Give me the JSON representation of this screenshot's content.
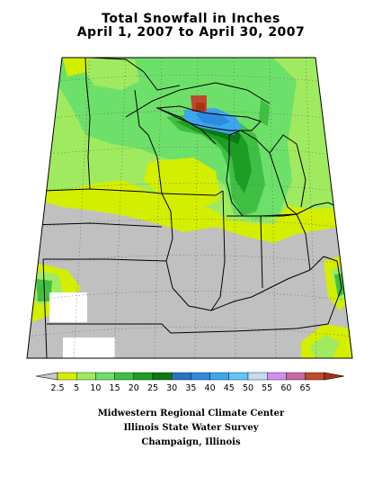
{
  "title": {
    "line1": "Total Snowfall in Inches",
    "line2": "April 1, 2007 to April 30, 2007"
  },
  "legend": {
    "bins": [
      {
        "label": "2.5",
        "color": "#d4ee00"
      },
      {
        "label": "5",
        "color": "#a0ea60"
      },
      {
        "label": "10",
        "color": "#6de06a"
      },
      {
        "label": "15",
        "color": "#3fc043"
      },
      {
        "label": "20",
        "color": "#1c9e24"
      },
      {
        "label": "25",
        "color": "#0a7a10"
      },
      {
        "label": "30",
        "color": "#2a72c8"
      },
      {
        "label": "35",
        "color": "#2e8ae0"
      },
      {
        "label": "40",
        "color": "#3ca6ee"
      },
      {
        "label": "45",
        "color": "#62c4f8"
      },
      {
        "label": "50",
        "color": "#c2dcf4"
      },
      {
        "label": "55",
        "color": "#d48ef0"
      },
      {
        "label": "60",
        "color": "#c86aa0"
      },
      {
        "label": "65",
        "color": "#c0482e"
      }
    ],
    "low_color": "#c8c8c8",
    "high_color": "#a83218"
  },
  "credits": {
    "line1": "Midwestern Regional Climate Center",
    "line2": "Illinois State Water Survey",
    "line3": "Champaign, Illinois"
  },
  "map": {
    "no_snow_color": "#c0c0c0",
    "missing_color": "#ffffff",
    "boundary_color": "#000000",
    "grid_color": "#333333"
  }
}
